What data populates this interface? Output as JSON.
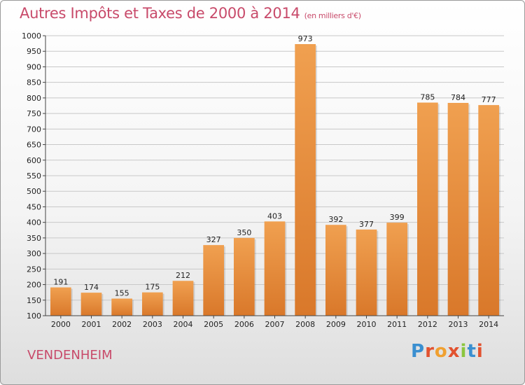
{
  "chart_data": {
    "type": "bar",
    "title": "Autres Impôts et Taxes de 2000 à 2014",
    "subtitle": "(en milliers d'€)",
    "categories": [
      "2000",
      "2001",
      "2002",
      "2003",
      "2004",
      "2005",
      "2006",
      "2007",
      "2008",
      "2009",
      "2010",
      "2011",
      "2012",
      "2013",
      "2014"
    ],
    "values": [
      191,
      174,
      155,
      175,
      212,
      327,
      350,
      403,
      973,
      392,
      377,
      399,
      785,
      784,
      777
    ],
    "ylim": [
      100,
      1000
    ],
    "yticks": [
      100,
      150,
      200,
      250,
      300,
      350,
      400,
      450,
      500,
      550,
      600,
      650,
      700,
      750,
      800,
      850,
      900,
      950,
      1000
    ],
    "grid": true,
    "bar_color": "#f0a050",
    "bar_color_dark": "#d9782a"
  },
  "footer": {
    "place": "VENDENHEIM",
    "logo": "Proxiti"
  }
}
